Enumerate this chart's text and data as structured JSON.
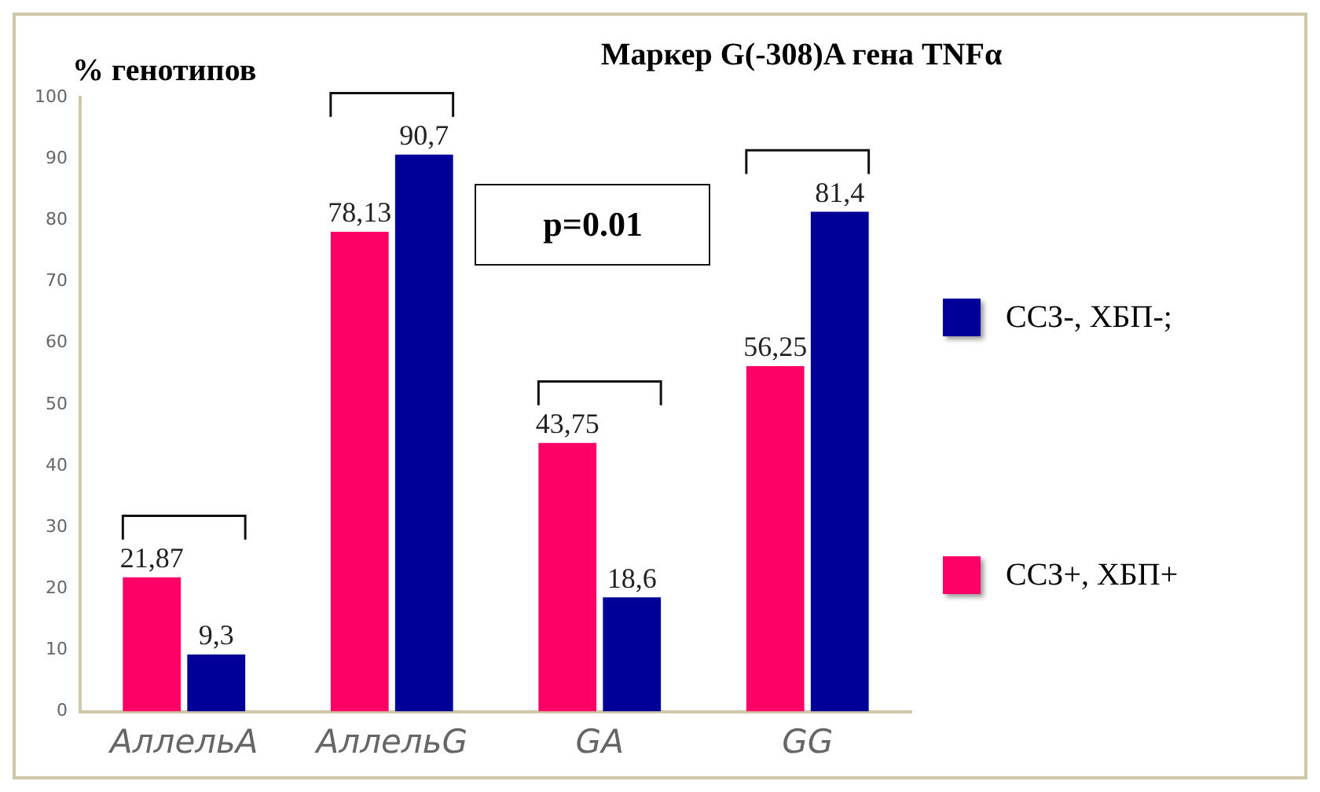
{
  "chart_data": {
    "type": "bar",
    "title": "Маркер G(-308)A гена TNFα",
    "ylabel": "% генотипов",
    "categories": [
      "АллельA",
      "АллельG",
      "GA",
      "GG"
    ],
    "series": [
      {
        "name": "ССЗ+, ХБП+",
        "color": "#ff0066",
        "values": [
          21.87,
          78.13,
          43.75,
          56.25
        ],
        "value_labels": [
          "21,87",
          "78,13",
          "43,75",
          "56,25"
        ]
      },
      {
        "name": "ССЗ-, ХБП-;",
        "color": "#000099",
        "values": [
          9.3,
          90.7,
          18.6,
          81.4
        ],
        "value_labels": [
          "9,3",
          "90,7",
          "18,6",
          "81,4"
        ]
      }
    ],
    "ylim": [
      0,
      100
    ],
    "yticks": [
      0,
      10,
      20,
      30,
      40,
      50,
      60,
      70,
      80,
      90,
      100
    ],
    "grid": false,
    "legend": "right",
    "annotations": [
      "p=0.01"
    ]
  }
}
